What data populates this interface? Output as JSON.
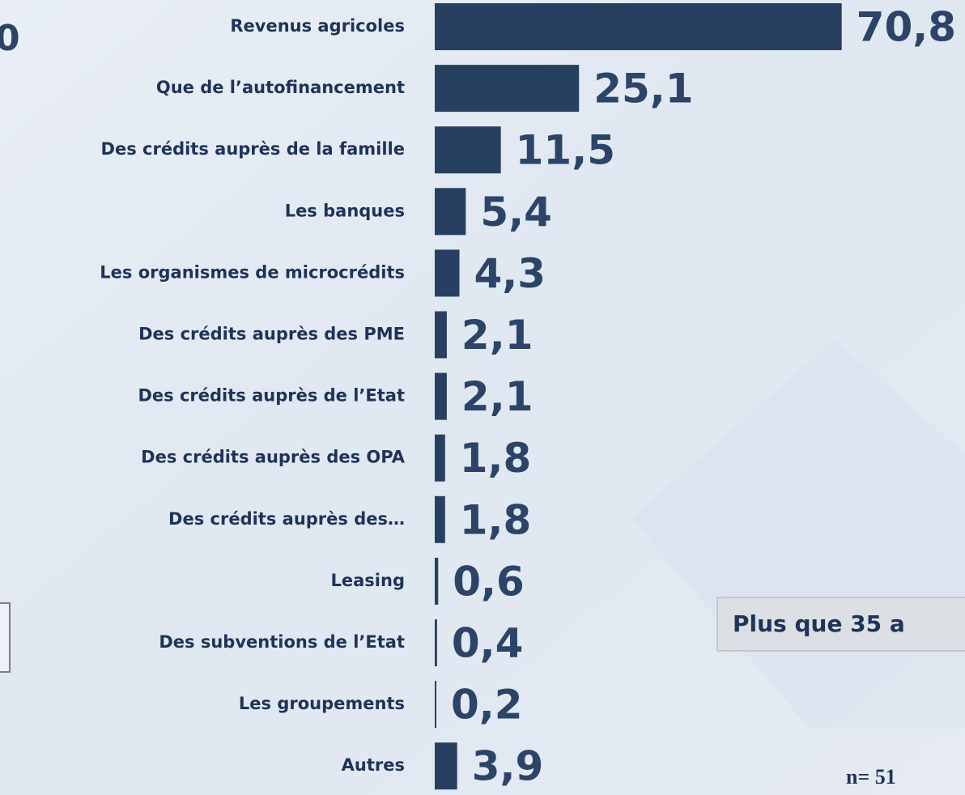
{
  "chart_data": {
    "type": "bar",
    "orientation": "horizontal",
    "categories": [
      "Revenus agricoles",
      "Que de l’autofinancement",
      "Des crédits auprès de la famille",
      "Les banques",
      "Les organismes de microcrédits",
      "Des crédits auprès des PME",
      "Des crédits auprès de l’Etat",
      "Des crédits auprès des OPA",
      "Des crédits auprès des…",
      "Leasing",
      "Des subventions de l’Etat",
      "Les groupements",
      "Autres"
    ],
    "values": [
      70.8,
      25.1,
      11.5,
      5.4,
      4.3,
      2.1,
      2.1,
      1.8,
      1.8,
      0.6,
      0.4,
      0.2,
      3.9
    ],
    "value_labels": [
      "70,8",
      "25,1",
      "11,5",
      "5,4",
      "4,3",
      "2,1",
      "2,1",
      "1,8",
      "1,8",
      "0,6",
      "0,4",
      "0,2",
      "3,9"
    ],
    "color": "#27405f",
    "xlim": [
      0,
      80
    ]
  },
  "fragments": {
    "left_number": "0",
    "box_text": "Plus que 35 a",
    "sample": "n= 51"
  }
}
